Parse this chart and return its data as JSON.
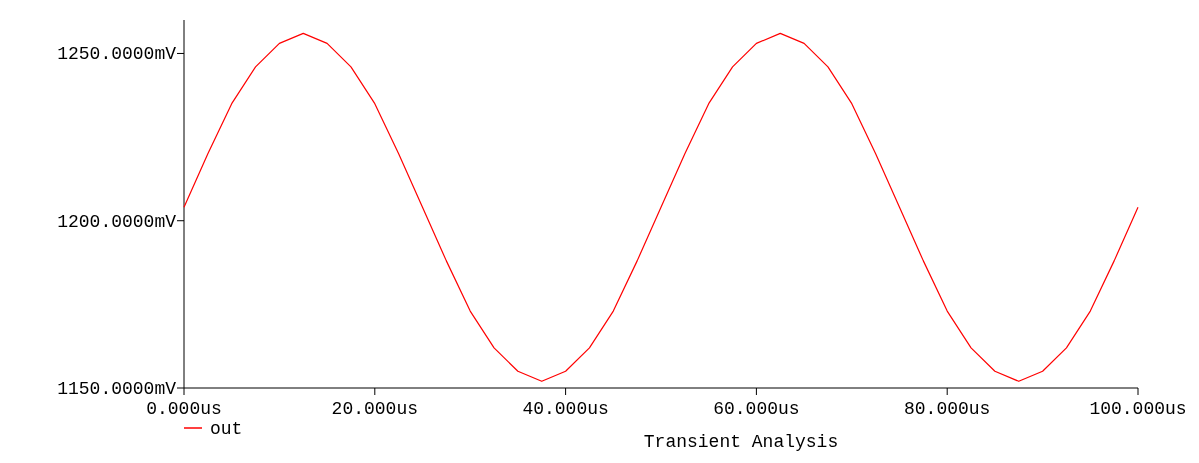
{
  "chart_data": {
    "type": "line",
    "title": "Transient Analysis",
    "x": [
      0,
      2.5,
      5,
      7.5,
      10,
      12.5,
      15,
      17.5,
      20,
      22.5,
      25,
      27.5,
      30,
      32.5,
      35,
      37.5,
      40,
      42.5,
      45,
      47.5,
      50,
      52.5,
      55,
      57.5,
      60,
      62.5,
      65,
      67.5,
      70,
      72.5,
      75,
      77.5,
      80,
      82.5,
      85,
      87.5,
      90,
      92.5,
      95,
      97.5,
      100
    ],
    "series": [
      {
        "name": "out",
        "color": "#ff0000",
        "values": [
          1204,
          1220,
          1235,
          1246,
          1253,
          1256,
          1253,
          1246,
          1235,
          1220,
          1204,
          1188,
          1173,
          1162,
          1155,
          1152,
          1155,
          1162,
          1173,
          1188,
          1204,
          1220,
          1235,
          1246,
          1253,
          1256,
          1253,
          1246,
          1235,
          1220,
          1204,
          1188,
          1173,
          1162,
          1155,
          1152,
          1155,
          1162,
          1173,
          1188,
          1204
        ]
      }
    ],
    "xlim": [
      0,
      100
    ],
    "xticks": [
      {
        "value": 0,
        "label": "0.000us"
      },
      {
        "value": 20,
        "label": "20.000us"
      },
      {
        "value": 40,
        "label": "40.000us"
      },
      {
        "value": 60,
        "label": "60.000us"
      },
      {
        "value": 80,
        "label": "80.000us"
      },
      {
        "value": 100,
        "label": "100.000us"
      }
    ],
    "ylim": [
      1150,
      1260
    ],
    "yticks": [
      {
        "value": 1150,
        "label": "1150.0000mV"
      },
      {
        "value": 1200,
        "label": "1200.0000mV"
      },
      {
        "value": 1250,
        "label": "1250.0000mV"
      }
    ],
    "grid": false,
    "legend": "bottom left",
    "marker": "none",
    "line_style": "solid"
  }
}
